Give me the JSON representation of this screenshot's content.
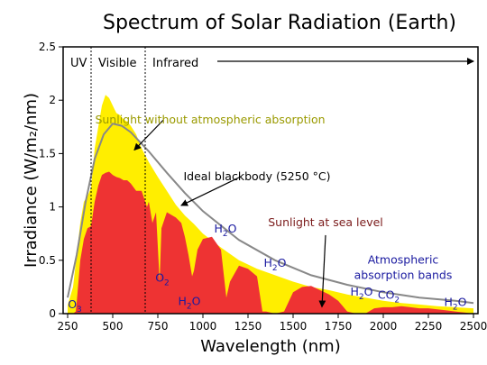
{
  "chart_data": {
    "type": "area",
    "title": "Spectrum of Solar Radiation (Earth)",
    "xlabel": "Wavelength (nm)",
    "ylabel": "Irradiance (W/m₂/nm)",
    "xlim": [
      225,
      2525
    ],
    "ylim": [
      0,
      2.5
    ],
    "x_ticks": [
      250,
      500,
      750,
      1000,
      1250,
      1500,
      1750,
      2000,
      2250,
      2500
    ],
    "y_ticks": [
      0,
      0.5,
      1,
      1.5,
      2,
      2.5
    ],
    "y_tick_labels": [
      "0",
      "0.5",
      "1",
      "1.5",
      "2",
      "2.5"
    ],
    "grid": false,
    "colors": {
      "top_of_atmosphere": "#ffee00",
      "sea_level": "#ee3333",
      "blackbody": "#888888",
      "annotation_olive": "#9a9a00",
      "annotation_maroon": "#7a1a1a",
      "absorption_text": "#1a1aa0"
    },
    "regions": [
      {
        "label": "UV",
        "x_start": 225,
        "x_end": 380
      },
      {
        "label": "Visible",
        "x_start": 380,
        "x_end": 680
      },
      {
        "label": "Infrared",
        "x_start": 680,
        "x_end": 2525
      }
    ],
    "series": [
      {
        "name": "Sunlight without atmospheric absorption",
        "x": [
          250,
          280,
          300,
          320,
          340,
          360,
          380,
          400,
          420,
          440,
          460,
          480,
          500,
          520,
          540,
          560,
          580,
          600,
          630,
          660,
          700,
          750,
          800,
          850,
          900,
          950,
          1000,
          1100,
          1200,
          1300,
          1400,
          1500,
          1600,
          1700,
          1800,
          1900,
          2000,
          2100,
          2200,
          2300,
          2400,
          2500
        ],
        "y": [
          0.08,
          0.25,
          0.55,
          0.85,
          1.05,
          1.1,
          1.18,
          1.55,
          1.75,
          1.95,
          2.05,
          2.02,
          1.95,
          1.88,
          1.86,
          1.82,
          1.8,
          1.76,
          1.68,
          1.55,
          1.42,
          1.28,
          1.15,
          1.02,
          0.92,
          0.84,
          0.75,
          0.62,
          0.5,
          0.42,
          0.36,
          0.3,
          0.25,
          0.22,
          0.18,
          0.15,
          0.12,
          0.1,
          0.085,
          0.07,
          0.06,
          0.05
        ]
      },
      {
        "name": "Sunlight at sea level",
        "x": [
          250,
          280,
          295,
          300,
          310,
          320,
          340,
          360,
          380,
          400,
          420,
          440,
          460,
          480,
          500,
          520,
          540,
          560,
          580,
          600,
          630,
          660,
          680,
          690,
          700,
          720,
          740,
          760,
          770,
          800,
          850,
          880,
          900,
          920,
          940,
          950,
          970,
          1000,
          1050,
          1100,
          1130,
          1150,
          1200,
          1250,
          1300,
          1330,
          1350,
          1400,
          1450,
          1500,
          1550,
          1600,
          1650,
          1700,
          1750,
          1800,
          1850,
          1900,
          1950,
          2000,
          2050,
          2100,
          2150,
          2200,
          2250,
          2300,
          2350,
          2400,
          2450,
          2500
        ],
        "y": [
          0,
          0,
          0.02,
          0.1,
          0.3,
          0.5,
          0.7,
          0.8,
          0.82,
          1.05,
          1.2,
          1.3,
          1.32,
          1.33,
          1.3,
          1.28,
          1.27,
          1.25,
          1.25,
          1.22,
          1.15,
          1.15,
          1.05,
          1.0,
          1.05,
          0.85,
          0.95,
          0.3,
          0.8,
          0.95,
          0.9,
          0.85,
          0.72,
          0.55,
          0.35,
          0.4,
          0.6,
          0.7,
          0.72,
          0.6,
          0.15,
          0.3,
          0.45,
          0.42,
          0.35,
          0.02,
          0.02,
          0.0,
          0.02,
          0.2,
          0.25,
          0.26,
          0.22,
          0.18,
          0.12,
          0.02,
          0.0,
          0.0,
          0.05,
          0.06,
          0.06,
          0.07,
          0.06,
          0.05,
          0.05,
          0.04,
          0.03,
          0.02,
          0.01,
          0.0
        ]
      },
      {
        "name": "Ideal blackbody (5250 °C)",
        "temperature_c": 5250,
        "x": [
          250,
          300,
          350,
          400,
          450,
          500,
          550,
          600,
          700,
          800,
          900,
          1000,
          1200,
          1400,
          1600,
          1800,
          2000,
          2200,
          2400,
          2500
        ],
        "y": [
          0.15,
          0.55,
          1.05,
          1.45,
          1.68,
          1.78,
          1.76,
          1.7,
          1.52,
          1.32,
          1.13,
          0.96,
          0.69,
          0.5,
          0.36,
          0.27,
          0.2,
          0.15,
          0.12,
          0.1
        ]
      }
    ],
    "annotations": [
      {
        "text": "Sunlight without atmospheric absorption",
        "x": 1040,
        "y": 1.78,
        "points_to": [
          620,
          1.5
        ]
      },
      {
        "text": "Ideal blackbody (5250 °C)",
        "x": 1300,
        "y": 1.25,
        "points_to": [
          880,
          0.98
        ]
      },
      {
        "text": "Sunlight at sea level",
        "x": 1680,
        "y": 0.82,
        "points_to": [
          1660,
          0.03
        ]
      },
      {
        "text": "Atmospheric absorption bands",
        "x": 2110,
        "y": 0.47
      }
    ],
    "absorption_bands": [
      {
        "molecule": "O",
        "subscript": "3",
        "x": 290,
        "y": 0.05
      },
      {
        "molecule": "O",
        "subscript": "2",
        "x": 775,
        "y": 0.3
      },
      {
        "molecule": "H",
        "subscript": "2",
        "suffix": "O",
        "x": 925,
        "y": 0.08
      },
      {
        "molecule": "H",
        "subscript": "2",
        "suffix": "O",
        "x": 1125,
        "y": 0.76
      },
      {
        "molecule": "H",
        "subscript": "2",
        "suffix": "O",
        "x": 1400,
        "y": 0.44
      },
      {
        "molecule": "H",
        "subscript": "2",
        "suffix": "O",
        "x": 1880,
        "y": 0.17
      },
      {
        "molecule": "CO",
        "subscript": "2",
        "x": 2030,
        "y": 0.14
      },
      {
        "molecule": "H",
        "subscript": "2",
        "suffix": "O",
        "x": 2400,
        "y": 0.07
      }
    ]
  }
}
